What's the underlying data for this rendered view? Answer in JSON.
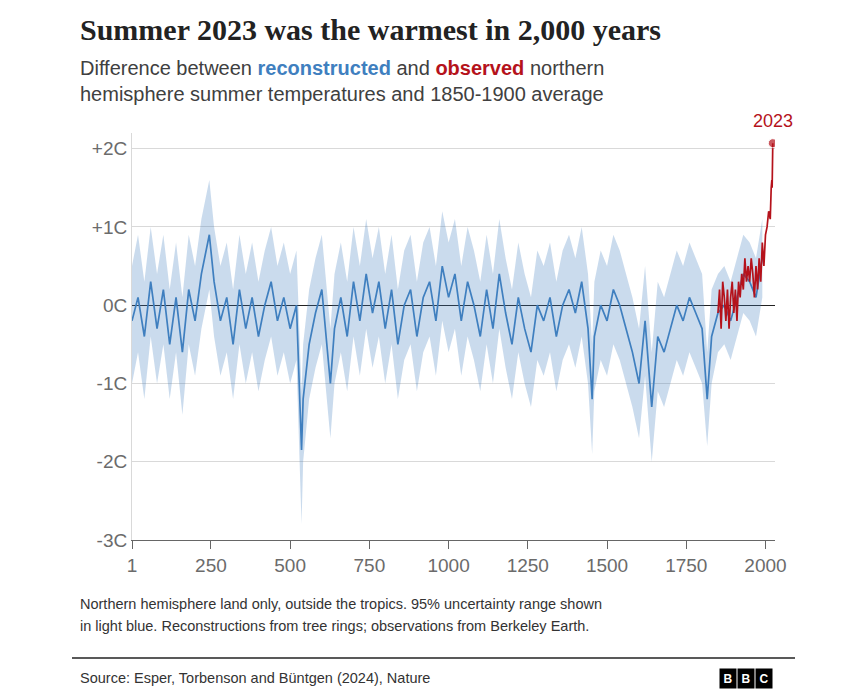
{
  "chart_data": {
    "type": "line",
    "title": "Summer 2023 was the warmest in 2,000 years",
    "subtitle": [
      "Difference between reconstructed and observed northern",
      "hemisphere summer temperatures and 1850-1900 average"
    ],
    "notes": [
      "Northern hemisphere land only, outside the tropics. 95% uncertainty range shown",
      "in light blue. Reconstructions from tree rings; observations from Berkeley Earth."
    ],
    "source": "Source: Esper, Torbenson and Büntgen (2024), Nature",
    "logo": "BBC",
    "xlim": [
      1,
      2030
    ],
    "xticks": [
      1,
      250,
      500,
      750,
      1000,
      1250,
      1500,
      1750,
      2000
    ],
    "ylim": [
      -3,
      2.2
    ],
    "yticks": [
      {
        "value": -3,
        "label": "-3C"
      },
      {
        "value": -2,
        "label": "-2C"
      },
      {
        "value": -1,
        "label": "-1C"
      },
      {
        "value": 0,
        "label": "0C"
      },
      {
        "value": 1,
        "label": "+1C"
      },
      {
        "value": 2,
        "label": "+2C"
      }
    ],
    "grid": true,
    "series": [
      {
        "name": "reconstructed",
        "color": "#3f7fbf",
        "x": [
          1,
          20,
          40,
          60,
          80,
          100,
          120,
          140,
          160,
          180,
          200,
          220,
          245,
          260,
          280,
          300,
          320,
          340,
          360,
          380,
          400,
          420,
          440,
          460,
          480,
          500,
          520,
          536,
          541,
          560,
          580,
          600,
          627,
          640,
          660,
          680,
          700,
          720,
          740,
          760,
          780,
          800,
          820,
          840,
          860,
          880,
          900,
          920,
          940,
          960,
          980,
          1000,
          1020,
          1040,
          1060,
          1080,
          1100,
          1120,
          1140,
          1160,
          1180,
          1200,
          1220,
          1240,
          1260,
          1280,
          1300,
          1320,
          1340,
          1360,
          1380,
          1400,
          1420,
          1440,
          1453,
          1460,
          1480,
          1500,
          1520,
          1540,
          1560,
          1580,
          1601,
          1620,
          1641,
          1660,
          1680,
          1700,
          1720,
          1740,
          1760,
          1780,
          1800,
          1816,
          1830,
          1850,
          1870,
          1890,
          1910,
          1930,
          1950,
          1970,
          1990
        ],
        "values": [
          -0.2,
          0.1,
          -0.4,
          0.3,
          -0.3,
          0.2,
          -0.5,
          0.1,
          -0.6,
          0.2,
          -0.2,
          0.4,
          0.9,
          0.3,
          -0.2,
          0.1,
          -0.5,
          0.2,
          -0.3,
          0.1,
          -0.4,
          0.0,
          0.3,
          -0.2,
          0.1,
          -0.3,
          0.0,
          -1.85,
          -1.2,
          -0.5,
          -0.1,
          0.2,
          -1.0,
          -0.3,
          0.1,
          -0.4,
          0.3,
          -0.2,
          0.4,
          -0.1,
          0.3,
          -0.3,
          0.2,
          -0.5,
          0.0,
          0.2,
          -0.4,
          0.1,
          0.3,
          -0.2,
          0.5,
          0.1,
          0.4,
          -0.2,
          0.3,
          0.0,
          -0.4,
          0.2,
          -0.3,
          0.4,
          -0.1,
          -0.5,
          0.1,
          -0.3,
          -0.6,
          0.0,
          -0.2,
          0.1,
          -0.4,
          0.0,
          0.2,
          -0.1,
          0.3,
          -0.3,
          -1.2,
          -0.4,
          0.0,
          -0.2,
          0.2,
          0.0,
          -0.3,
          -0.6,
          -1.0,
          -0.2,
          -1.3,
          -0.4,
          -0.6,
          -0.3,
          0.0,
          -0.2,
          0.1,
          -0.1,
          -0.3,
          -1.2,
          -0.4,
          -0.1,
          0.0,
          -0.2,
          0.1,
          0.4,
          0.3,
          0.1,
          0.6
        ],
        "lower": [
          -1.0,
          -0.6,
          -1.2,
          -0.4,
          -1.0,
          -0.5,
          -1.2,
          -0.6,
          -1.4,
          -0.5,
          -0.9,
          -0.3,
          0.2,
          -0.4,
          -0.9,
          -0.6,
          -1.2,
          -0.5,
          -1.0,
          -0.6,
          -1.1,
          -0.7,
          -0.4,
          -0.9,
          -0.6,
          -1.0,
          -0.7,
          -2.8,
          -2.0,
          -1.2,
          -0.8,
          -0.5,
          -1.7,
          -1.0,
          -0.6,
          -1.1,
          -0.4,
          -0.9,
          -0.3,
          -0.8,
          -0.4,
          -1.0,
          -0.5,
          -1.2,
          -0.7,
          -0.5,
          -1.1,
          -0.6,
          -0.4,
          -0.9,
          -0.2,
          -0.6,
          -0.3,
          -0.9,
          -0.4,
          -0.7,
          -1.1,
          -0.5,
          -1.0,
          -0.3,
          -0.8,
          -1.2,
          -0.6,
          -1.0,
          -1.3,
          -0.7,
          -0.9,
          -0.6,
          -1.1,
          -0.7,
          -0.5,
          -0.8,
          -0.4,
          -1.0,
          -1.9,
          -1.1,
          -0.7,
          -0.9,
          -0.5,
          -0.7,
          -1.0,
          -1.3,
          -1.7,
          -0.9,
          -2.0,
          -1.1,
          -1.3,
          -1.0,
          -0.7,
          -0.9,
          -0.6,
          -0.8,
          -1.0,
          -1.8,
          -1.0,
          -0.6,
          -0.5,
          -0.7,
          -0.4,
          -0.1,
          -0.2,
          -0.4,
          0.1
        ],
        "upper": [
          0.5,
          0.9,
          0.3,
          1.0,
          0.4,
          0.9,
          0.2,
          0.8,
          0.1,
          0.9,
          0.5,
          1.1,
          1.6,
          1.0,
          0.5,
          0.8,
          0.2,
          0.9,
          0.4,
          0.8,
          0.3,
          0.7,
          1.0,
          0.5,
          0.8,
          0.4,
          0.7,
          -1.1,
          -0.5,
          0.2,
          0.6,
          0.9,
          -0.3,
          0.4,
          0.8,
          0.3,
          1.0,
          0.5,
          1.1,
          0.6,
          1.0,
          0.4,
          0.9,
          0.2,
          0.7,
          0.9,
          0.3,
          0.8,
          1.0,
          0.5,
          1.2,
          0.8,
          1.1,
          0.5,
          1.0,
          0.7,
          0.3,
          0.9,
          0.4,
          1.1,
          0.6,
          0.2,
          0.8,
          0.4,
          0.1,
          0.7,
          0.5,
          0.8,
          0.3,
          0.7,
          0.9,
          0.6,
          1.0,
          0.4,
          -0.5,
          0.3,
          0.7,
          0.5,
          0.9,
          0.7,
          0.4,
          0.1,
          -0.3,
          0.5,
          -0.6,
          0.3,
          0.1,
          0.4,
          0.7,
          0.5,
          0.8,
          0.6,
          0.4,
          -0.6,
          0.2,
          0.4,
          0.5,
          0.3,
          0.6,
          0.9,
          0.8,
          0.6,
          1.1
        ]
      },
      {
        "name": "observed",
        "color": "#b5121b",
        "marker": "end",
        "x": [
          1850,
          1855,
          1860,
          1865,
          1870,
          1875,
          1880,
          1885,
          1890,
          1895,
          1900,
          1905,
          1910,
          1915,
          1920,
          1925,
          1930,
          1935,
          1940,
          1945,
          1950,
          1955,
          1960,
          1965,
          1970,
          1975,
          1980,
          1985,
          1990,
          1995,
          2000,
          2005,
          2010,
          2015,
          2018,
          2020,
          2021,
          2022,
          2023
        ],
        "values": [
          -0.1,
          0.2,
          -0.3,
          0.3,
          0.1,
          -0.2,
          0.2,
          -0.3,
          0.1,
          0.3,
          -0.1,
          0.2,
          -0.2,
          0.3,
          0.1,
          0.4,
          0.2,
          0.6,
          0.3,
          0.5,
          0.3,
          0.6,
          0.4,
          0.1,
          0.5,
          0.2,
          0.6,
          0.3,
          0.8,
          0.5,
          0.9,
          1.0,
          1.2,
          1.1,
          1.5,
          1.6,
          1.5,
          1.8,
          2.07
        ]
      }
    ],
    "annotations": [
      {
        "x": 2023,
        "y": 2.07,
        "text": "2023"
      }
    ]
  }
}
